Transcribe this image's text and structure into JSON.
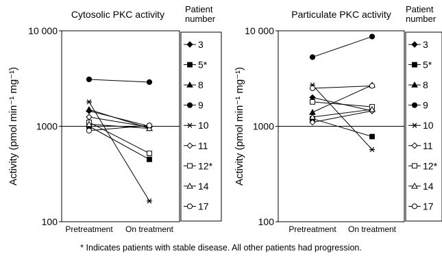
{
  "chart_data": [
    {
      "type": "line",
      "title": "Cytosolic PKC activity",
      "ylabel": "Activity (pmol min⁻¹ mg⁻¹)",
      "yscale": "log",
      "ylim": [
        100,
        10000
      ],
      "yticks": [
        "100",
        "1000",
        "10 000"
      ],
      "categories": [
        "Pretreatment",
        "On treatment"
      ],
      "reference_line": 1000,
      "legend_title": "Patient number",
      "legend_position": "right",
      "series": [
        {
          "name": "3",
          "marker": "diamond-filled",
          "values": [
            1450,
            1000
          ]
        },
        {
          "name": "5*",
          "marker": "square-filled",
          "values": [
            1000,
            450
          ]
        },
        {
          "name": "8",
          "marker": "triangle-filled",
          "values": [
            1500,
            950
          ]
        },
        {
          "name": "9",
          "marker": "circle-filled",
          "values": [
            3100,
            2900
          ]
        },
        {
          "name": "10",
          "marker": "asterisk",
          "values": [
            1800,
            165
          ]
        },
        {
          "name": "11",
          "marker": "diamond-open",
          "values": [
            1250,
            980
          ]
        },
        {
          "name": "12*",
          "marker": "square-open",
          "values": [
            1100,
            520
          ]
        },
        {
          "name": "14",
          "marker": "triangle-open",
          "values": [
            1050,
            950
          ]
        },
        {
          "name": "17",
          "marker": "circle-open",
          "values": [
            900,
            1020
          ]
        }
      ]
    },
    {
      "type": "line",
      "title": "Particulate PKC activity",
      "ylabel": "Activity (pmol min⁻¹ mg⁻¹)",
      "yscale": "log",
      "ylim": [
        100,
        10000
      ],
      "yticks": [
        "100",
        "1000",
        "10 000"
      ],
      "categories": [
        "Pretreatment",
        "On treatment"
      ],
      "reference_line": 1000,
      "legend_title": "Patient number",
      "legend_position": "right",
      "series": [
        {
          "name": "3",
          "marker": "diamond-filled",
          "values": [
            2000,
            1450
          ]
        },
        {
          "name": "5*",
          "marker": "square-filled",
          "values": [
            1200,
            780
          ]
        },
        {
          "name": "8",
          "marker": "triangle-filled",
          "values": [
            1400,
            2700
          ]
        },
        {
          "name": "9",
          "marker": "circle-filled",
          "values": [
            5300,
            8700
          ]
        },
        {
          "name": "10",
          "marker": "asterisk",
          "values": [
            2700,
            570
          ]
        },
        {
          "name": "11",
          "marker": "diamond-open",
          "values": [
            1100,
            1450
          ]
        },
        {
          "name": "12*",
          "marker": "square-open",
          "values": [
            1800,
            1600
          ]
        },
        {
          "name": "14",
          "marker": "triangle-open",
          "values": [
            1250,
            1500
          ]
        },
        {
          "name": "17",
          "marker": "circle-open",
          "values": [
            2500,
            2650
          ]
        }
      ]
    }
  ],
  "footnote": {
    "star": "*",
    "text": "Indicates patients with stable disease.  All other patients had progression."
  }
}
